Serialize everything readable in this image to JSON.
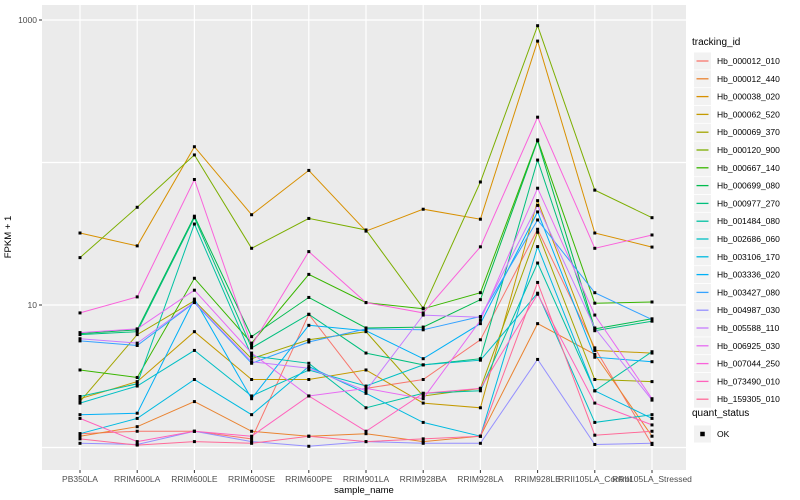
{
  "window": {
    "description": "ggplot-style multi-series line chart of gene expression"
  },
  "panel": {
    "bg": "#EBEBEB",
    "grid_color": "#FFFFFF",
    "tick_color": "#333333"
  },
  "chart_data": {
    "type": "line",
    "title": "",
    "xlabel": "sample_name",
    "ylabel": "FPKM + 1",
    "y_scale": "log10",
    "ylim": [
      1,
      1000
    ],
    "y_gridlines": [
      1,
      10,
      100,
      1000
    ],
    "y_tick_labels": [
      {
        "value": 1000,
        "label": "1000"
      },
      {
        "value": 10,
        "label": "10"
      }
    ],
    "grid": "on",
    "point_marker": "black-square",
    "x_categories": [
      "PB350LA",
      "RRIM600LA",
      "RRIM600LE",
      "RRIM600SE",
      "RRIM600PE",
      "RRIM901LA",
      "RRIM928BA",
      "RRIM928LA",
      "RRIM928LE",
      "RRII105LA_Control",
      "RRII105LA_Stressed"
    ],
    "series": [
      {
        "name": "Hb_000012_010",
        "color": "#F8766D",
        "values": [
          1.25,
          1.3,
          1.3,
          1.15,
          8.6,
          2.6,
          3.0,
          5.7,
          34,
          5.0,
          1.05
        ]
      },
      {
        "name": "Hb_000012_440",
        "color": "#EA8331",
        "values": [
          1.2,
          1.4,
          2.1,
          1.3,
          1.2,
          1.25,
          1.1,
          1.2,
          7.4,
          4.5,
          1.2
        ]
      },
      {
        "name": "Hb_000038_020",
        "color": "#D89000",
        "values": [
          32,
          26,
          129,
          43,
          88,
          33,
          47,
          40,
          711,
          32,
          25.5
        ]
      },
      {
        "name": "Hb_000062_520",
        "color": "#C49A00",
        "values": [
          2.2,
          2.9,
          6.5,
          3.0,
          3.0,
          3.5,
          2.05,
          1.9,
          54,
          4.8,
          4.6
        ]
      },
      {
        "name": "Hb_000069_370",
        "color": "#A3A500",
        "values": [
          2.1,
          6.2,
          10.7,
          4.2,
          5.7,
          6.5,
          2.3,
          2.6,
          32.4,
          3.0,
          2.9
        ]
      },
      {
        "name": "Hb_000120_900",
        "color": "#7CAE00",
        "values": [
          21.5,
          48.5,
          113,
          25,
          40.5,
          33.6,
          9.5,
          73,
          912,
          64,
          41
        ]
      },
      {
        "name": "Hb_000667_140",
        "color": "#39B600",
        "values": [
          3.5,
          3.1,
          15.4,
          5.4,
          16.4,
          10.4,
          9.4,
          12.2,
          144,
          10.3,
          10.5
        ]
      },
      {
        "name": "Hb_000699_080",
        "color": "#00BB4E",
        "values": [
          6.3,
          6.7,
          42,
          6.0,
          11.3,
          6.9,
          7.0,
          10.9,
          142,
          6.8,
          8.0
        ]
      },
      {
        "name": "Hb_000977_270",
        "color": "#00BF7D",
        "values": [
          6.2,
          6.5,
          41,
          5.0,
          8.6,
          4.6,
          3.8,
          4.2,
          104,
          6.6,
          7.7
        ]
      },
      {
        "name": "Hb_001484_080",
        "color": "#00C1A3",
        "values": [
          2.28,
          2.8,
          37,
          4.4,
          3.9,
          1.9,
          2.4,
          2.5,
          19.7,
          2.5,
          4.7
        ]
      },
      {
        "name": "Hb_002686_060",
        "color": "#00BFC4",
        "values": [
          2.05,
          2.7,
          4.8,
          2.3,
          3.5,
          2.7,
          3.8,
          4.1,
          12.1,
          1.5,
          1.7
        ]
      },
      {
        "name": "Hb_003106_170",
        "color": "#00BAE0",
        "values": [
          1.25,
          1.6,
          3.0,
          1.7,
          3.7,
          2.4,
          1.5,
          1.2,
          25.7,
          2.5,
          1.6
        ]
      },
      {
        "name": "Hb_003336_020",
        "color": "#00B0F6",
        "values": [
          1.7,
          1.74,
          11,
          2.2,
          7.2,
          6.6,
          4.2,
          7.4,
          45,
          4.3,
          4.0
        ]
      },
      {
        "name": "Hb_003427_080",
        "color": "#35A2FF",
        "values": [
          5.6,
          5.2,
          10.4,
          3.9,
          5.5,
          6.8,
          6.7,
          8.3,
          39.5,
          12.2,
          7.9
        ]
      },
      {
        "name": "Hb_004987_030",
        "color": "#9590FF",
        "values": [
          1.07,
          1.05,
          1.3,
          1.1,
          1.02,
          1.1,
          1.07,
          1.07,
          4.15,
          1.05,
          1.07
        ]
      },
      {
        "name": "Hb_005588_110",
        "color": "#C77CFF",
        "values": [
          5.8,
          5.4,
          10.5,
          4.0,
          3.6,
          2.5,
          8.5,
          8.2,
          50,
          6.9,
          2.15
        ]
      },
      {
        "name": "Hb_006925_030",
        "color": "#E76BF3",
        "values": [
          6.4,
          6.8,
          12.7,
          4.6,
          2.3,
          2.6,
          2.2,
          7.8,
          66,
          8.5,
          2.2
        ]
      },
      {
        "name": "Hb_007044_250",
        "color": "#FA62DB",
        "values": [
          8.8,
          11.4,
          76,
          5.2,
          23.7,
          10.4,
          8.8,
          25.6,
          208,
          25,
          31
        ]
      },
      {
        "name": "Hb_073490_010",
        "color": "#FF62BC",
        "values": [
          1.6,
          1.1,
          1.3,
          1.2,
          2.3,
          1.3,
          2.4,
          2.6,
          11.9,
          2.05,
          1.44
        ]
      },
      {
        "name": "Hb_159305_010",
        "color": "#FF6A98",
        "values": [
          1.15,
          1.04,
          1.1,
          1.07,
          1.2,
          1.1,
          1.15,
          1.2,
          14.4,
          1.22,
          1.3
        ]
      }
    ],
    "legend": {
      "title": "tracking_id",
      "position": "right"
    },
    "legend2": {
      "title": "quant_status",
      "items": [
        {
          "label": "OK",
          "marker": "black-square"
        }
      ]
    }
  }
}
